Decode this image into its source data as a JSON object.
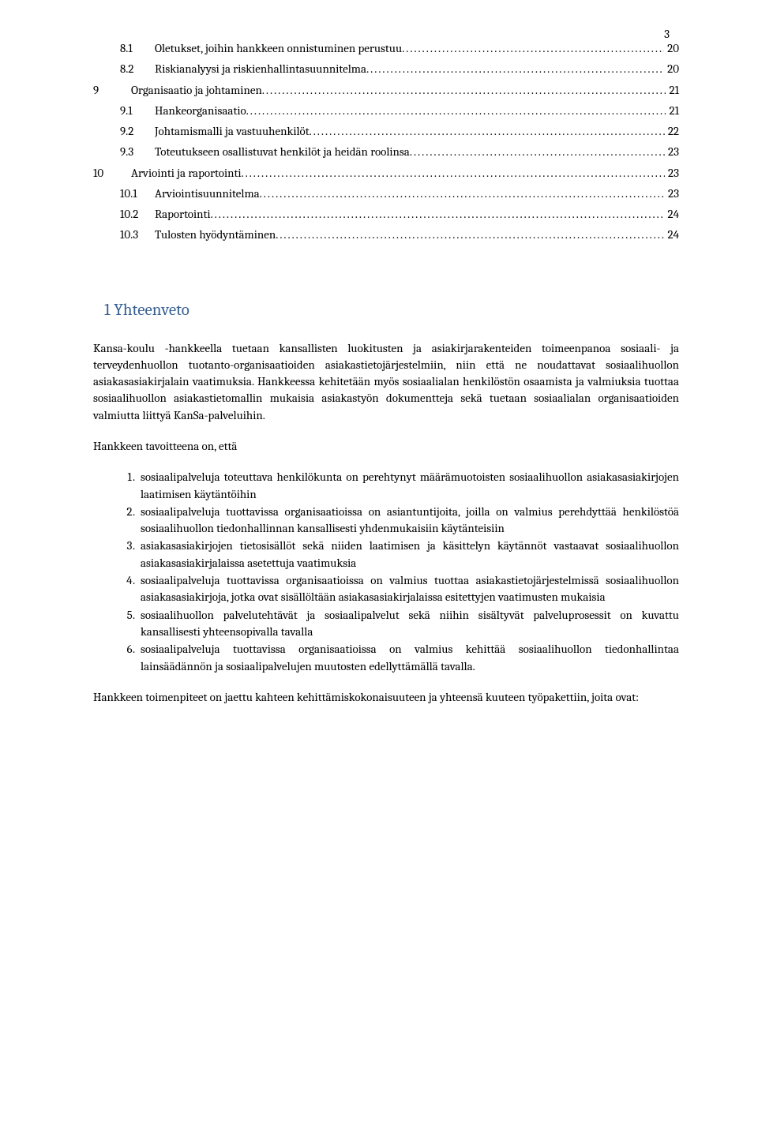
{
  "pageNumber": "3",
  "toc": [
    {
      "indent": 1,
      "num": "8.1",
      "title": "Oletukset, joihin hankkeen onnistuminen perustuu",
      "page": "20"
    },
    {
      "indent": 1,
      "num": "8.2",
      "title": "Riskianalyysi ja riskienhallintasuunnitelma",
      "page": "20"
    },
    {
      "indent": 0,
      "num": "9",
      "title": "Organisaatio ja johtaminen",
      "page": "21"
    },
    {
      "indent": 1,
      "num": "9.1",
      "title": "Hankeorganisaatio",
      "page": "21"
    },
    {
      "indent": 1,
      "num": "9.2",
      "title": "Johtamismalli ja vastuuhenkilöt",
      "page": "22"
    },
    {
      "indent": 1,
      "num": "9.3",
      "title": "Toteutukseen osallistuvat henkilöt ja heidän roolinsa",
      "page": "23"
    },
    {
      "indent": 0,
      "num": "10",
      "title": "Arviointi ja raportointi",
      "page": "23"
    },
    {
      "indent": 1,
      "num": "10.1",
      "title": "Arviointisuunnitelma",
      "page": "23"
    },
    {
      "indent": 1,
      "num": "10.2",
      "title": "Raportointi",
      "page": "24"
    },
    {
      "indent": 1,
      "num": "10.3",
      "title": "Tulosten hyödyntäminen",
      "page": "24"
    }
  ],
  "heading": "1  Yhteenveto",
  "para1": "Kansa-koulu -hankkeella tuetaan kansallisten luokitusten ja asiakirjarakenteiden toimeenpanoa sosiaali- ja terveydenhuollon tuotanto-organisaatioiden asiakastietojärjestelmiin, niin että ne noudattavat sosiaalihuollon asiakasasiakirjalain vaatimuksia. Hankkeessa kehitetään myös sosiaalialan henkilöstön osaamista ja valmiuksia tuottaa sosiaalihuollon asiakastietomallin mukaisia asiakastyön dokumentteja sekä tuetaan sosiaalialan organisaatioiden valmiutta liittyä KanSa-palveluihin.",
  "para2": "Hankkeen tavoitteena on, että",
  "objectives": [
    "sosiaalipalveluja toteuttava henkilökunta on perehtynyt määrämuotoisten sosiaalihuollon asiakasasiakirjojen laatimisen käytäntöihin",
    "sosiaalipalveluja tuottavissa organisaatioissa on asiantuntijoita, joilla on valmius perehdyttää henkilöstöä sosiaalihuollon tiedonhallinnan kansallisesti yhdenmukaisiin käytänteisiin",
    "asiakasasiakirjojen tietosisällöt sekä niiden laatimisen ja käsittelyn käytännöt vastaavat sosiaalihuollon asiakasasiakirjalaissa asetettuja vaatimuksia",
    "sosiaalipalveluja tuottavissa organisaatioissa on valmius tuottaa asiakastietojärjestelmissä sosiaalihuollon asiakasasiakirjoja, jotka ovat sisällöltään asiakasasiakirjalaissa esitettyjen vaatimusten mukaisia",
    "sosiaalihuollon palvelutehtävät ja sosiaalipalvelut sekä niihin sisältyvät palveluprosessit on kuvattu kansallisesti yhteensopivalla tavalla",
    "sosiaalipalveluja tuottavissa organisaatioissa on valmius kehittää sosiaalihuollon tiedonhallintaa lainsäädännön ja sosiaalipalvelujen muutosten edellyttämällä tavalla."
  ],
  "para3": "Hankkeen toimenpiteet on jaettu kahteen kehittämiskokonaisuuteen ja yhteensä kuuteen työpakettiin, joita ovat:"
}
